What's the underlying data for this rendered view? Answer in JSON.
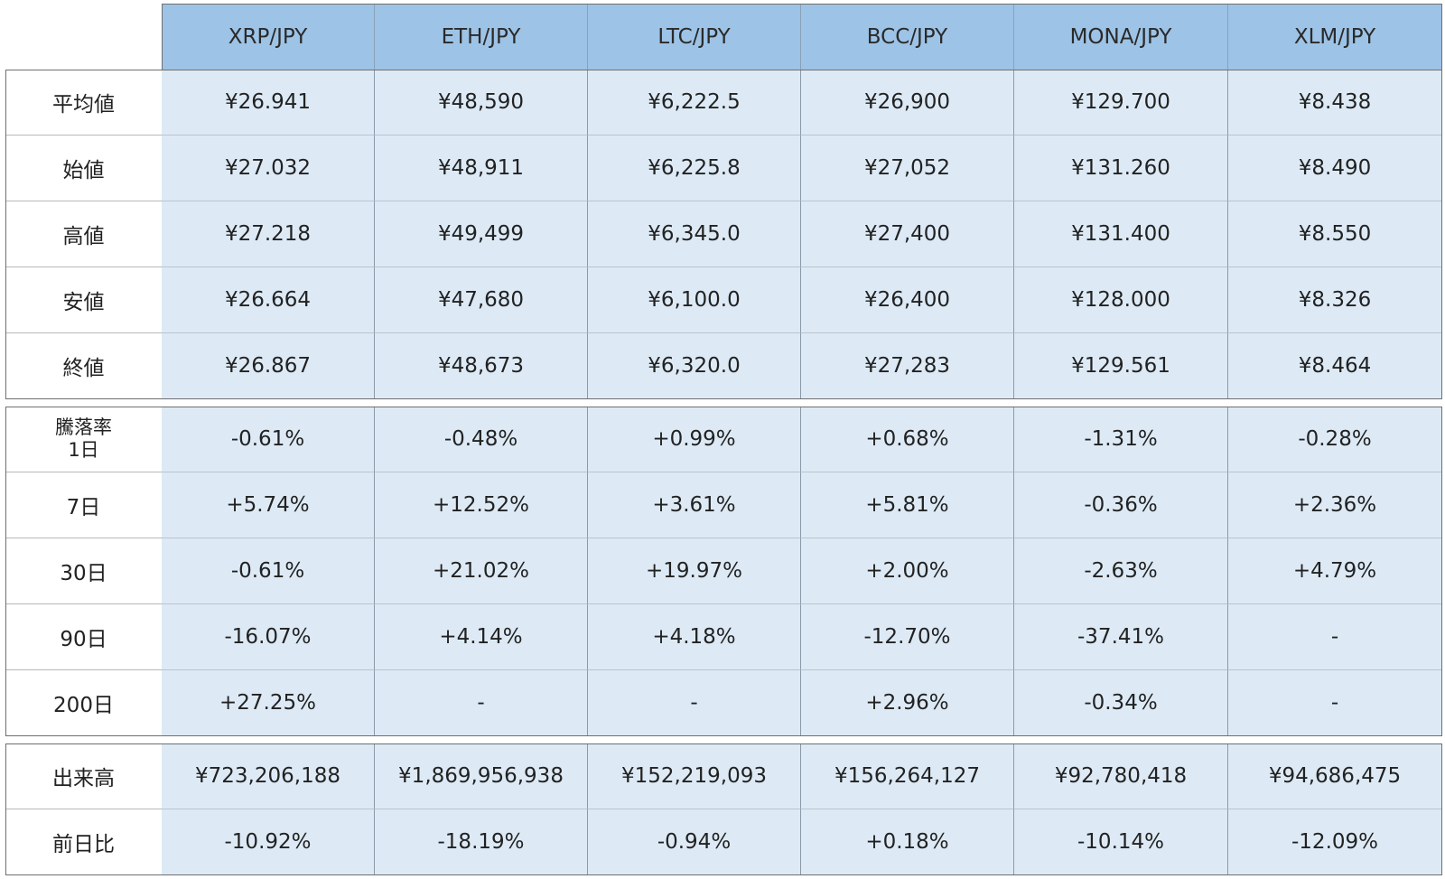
{
  "pairs": [
    "XRP/JPY",
    "ETH/JPY",
    "LTC/JPY",
    "BCC/JPY",
    "MONA/JPY",
    "XLM/JPY"
  ],
  "price_section": {
    "rows": [
      {
        "label": "平均値",
        "values": [
          "¥26.941",
          "¥48,590",
          "¥6,222.5",
          "¥26,900",
          "¥129.700",
          "¥8.438"
        ]
      },
      {
        "label": "始値",
        "values": [
          "¥27.032",
          "¥48,911",
          "¥6,225.8",
          "¥27,052",
          "¥131.260",
          "¥8.490"
        ]
      },
      {
        "label": "高値",
        "values": [
          "¥27.218",
          "¥49,499",
          "¥6,345.0",
          "¥27,400",
          "¥131.400",
          "¥8.550"
        ]
      },
      {
        "label": "安値",
        "values": [
          "¥26.664",
          "¥47,680",
          "¥6,100.0",
          "¥26,400",
          "¥128.000",
          "¥8.326"
        ]
      },
      {
        "label": "終値",
        "values": [
          "¥26.867",
          "¥48,673",
          "¥6,320.0",
          "¥27,283",
          "¥129.561",
          "¥8.464"
        ]
      }
    ]
  },
  "change_section": {
    "rows": [
      {
        "label": "騰落率\n1日",
        "values": [
          "-0.61%",
          "-0.48%",
          "+0.99%",
          "+0.68%",
          "-1.31%",
          "-0.28%"
        ]
      },
      {
        "label": "7日",
        "values": [
          "+5.74%",
          "+12.52%",
          "+3.61%",
          "+5.81%",
          "-0.36%",
          "+2.36%"
        ]
      },
      {
        "label": "30日",
        "values": [
          "-0.61%",
          "+21.02%",
          "+19.97%",
          "+2.00%",
          "-2.63%",
          "+4.79%"
        ]
      },
      {
        "label": "90日",
        "values": [
          "-16.07%",
          "+4.14%",
          "+4.18%",
          "-12.70%",
          "-37.41%",
          "-"
        ]
      },
      {
        "label": "200日",
        "values": [
          "+27.25%",
          "-",
          "-",
          "+2.96%",
          "-0.34%",
          "-"
        ]
      }
    ]
  },
  "volume_section": {
    "rows": [
      {
        "label": "出来高",
        "values": [
          "¥723,206,188",
          "¥1,869,956,938",
          "¥152,219,093",
          "¥156,264,127",
          "¥92,780,418",
          "¥94,686,475"
        ]
      },
      {
        "label": "前日比",
        "values": [
          "-10.92%",
          "-18.19%",
          "-0.94%",
          "+0.18%",
          "-10.14%",
          "-12.09%"
        ]
      }
    ]
  },
  "colors": {
    "header_bg": "#9dc3e6",
    "cell_bg": "#ddeaf6",
    "label_bg": "#ffffff",
    "border": "#6f6f6f"
  }
}
